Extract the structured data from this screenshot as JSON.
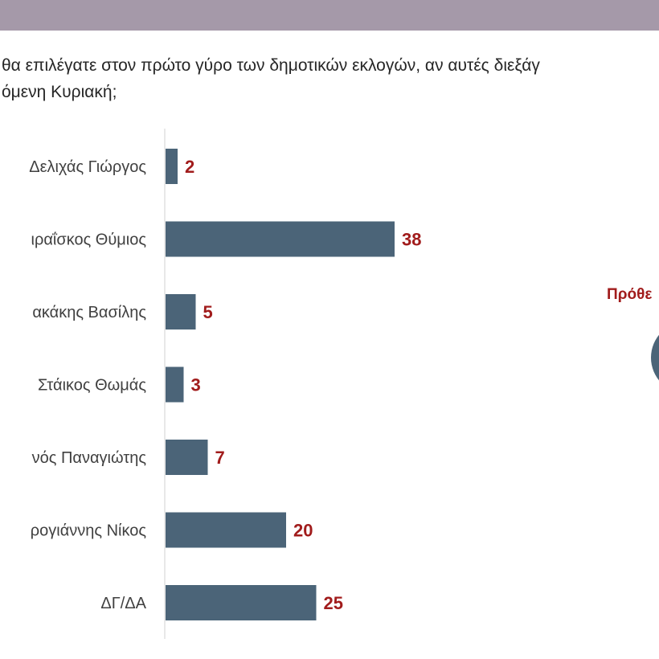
{
  "question": {
    "line1": "θα επιλέγατε στον πρώτο γύρο των δημοτικών εκλογών, αν αυτές διεξάγ",
    "line2": "όμενη Κυριακή;"
  },
  "side_panel": {
    "heading": "Πρόθε"
  },
  "colors": {
    "bar": "#4b6478",
    "value_label": "#a11c1c",
    "band": "#a599a9",
    "axis": "#d0d0d0"
  },
  "chart_data": {
    "type": "bar",
    "orientation": "horizontal",
    "categories": [
      "Δελιχάς Γιώργος",
      "ιραΐσκος Θύμιος",
      "ακάκης Βασίλης",
      "Στάικος Θωμάς",
      "νός Παναγιώτης",
      "ρογιάννης Νίκος",
      "ΔΓ/ΔΑ"
    ],
    "values": [
      2,
      38,
      5,
      3,
      7,
      20,
      25
    ],
    "value_labels": [
      "2",
      "38",
      "5",
      "3",
      "7",
      "20",
      "25"
    ],
    "xlim": [
      0,
      40
    ],
    "grid": false,
    "legend": "none"
  }
}
